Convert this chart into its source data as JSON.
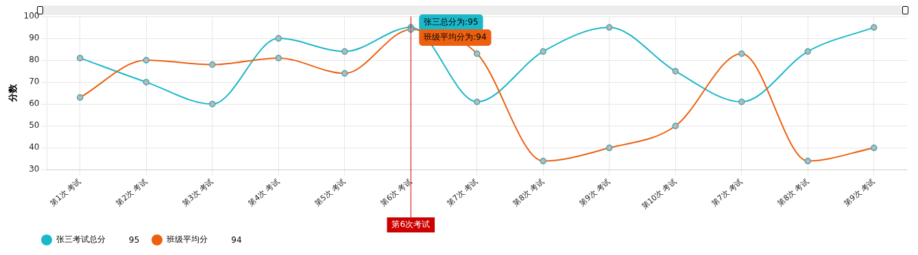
{
  "chart_data": {
    "type": "line",
    "ylabel": "分数",
    "categories": [
      "第1次 考试",
      "第2次 考试",
      "第3次 考试",
      "第4次 考试",
      "第5次 考试",
      "第6次 考试",
      "第7次 考试",
      "第8次 考试",
      "第9次 考试",
      "第10次 考试",
      "第7次 考试",
      "第8次 考试",
      "第9次 考试"
    ],
    "series": [
      {
        "name": "张三考试总分",
        "color": "#1ab8c9",
        "values": [
          81,
          70,
          60,
          90,
          84,
          95,
          61,
          84,
          95,
          75,
          61,
          84,
          95
        ]
      },
      {
        "name": "班级平均分",
        "color": "#ec6010",
        "values": [
          63,
          80,
          78,
          81,
          74,
          94,
          83,
          34,
          40,
          50,
          83,
          34,
          40
        ]
      }
    ],
    "ylim": [
      30,
      100
    ],
    "yticks": [
      30,
      40,
      50,
      60,
      70,
      80,
      90,
      100
    ],
    "ref_lines": [
      {
        "axis": "x",
        "value": "第6次 考试",
        "label": "第6次考试",
        "color": "#cc0000"
      }
    ],
    "annotations": [
      {
        "text": "张三总分为:95",
        "x": "第6次 考试",
        "y": 95
      },
      {
        "text": "班级平均分为:94",
        "x": "第6次 考试",
        "y": 94
      },
      "95",
      "94"
    ],
    "grid": true,
    "legend": "bottom left",
    "marker": "circle",
    "line_style": "solid"
  }
}
